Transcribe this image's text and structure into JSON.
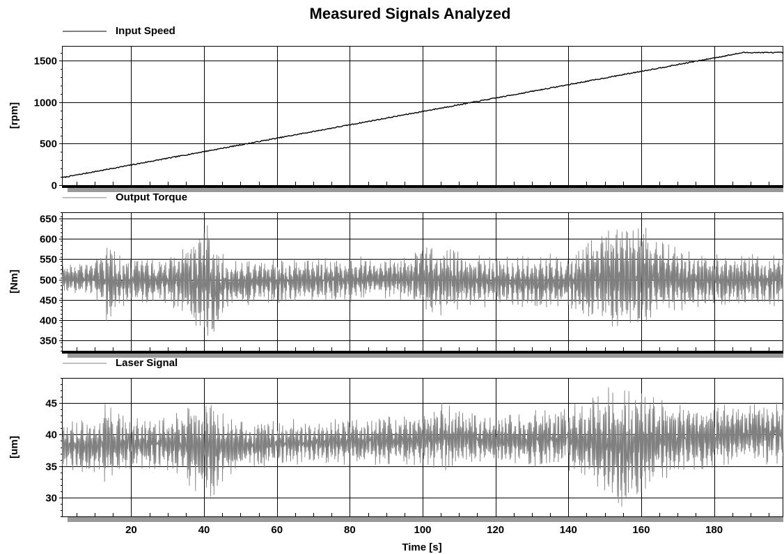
{
  "colors": {
    "background": "#ffffff",
    "grid": "#000000",
    "input_speed": "#000000",
    "output_torque": "#808080",
    "laser_signal": "#808080",
    "axis_bar_dark": "#000000",
    "axis_bar_light": "#999999"
  },
  "chart_data": {
    "type": "line",
    "title": "Measured Signals Analyzed",
    "xlabel": "Time [s]",
    "xlim": [
      1,
      199
    ],
    "x_ticks": [
      20,
      40,
      60,
      80,
      100,
      120,
      140,
      160,
      180
    ],
    "x_minor_step": 5,
    "grid": true,
    "panels": [
      {
        "id": "input-speed",
        "series_name": "Input Speed",
        "ylabel": "[rpm]",
        "ylim": [
          0,
          1680
        ],
        "y_ticks": [
          0,
          500,
          1000,
          1500
        ],
        "style": "ramp",
        "ramp": {
          "x_start": 1,
          "y_start": 90,
          "x_end": 188,
          "y_end": 1600,
          "y_plateau": 1600
        }
      },
      {
        "id": "output-torque",
        "series_name": "Output Torque",
        "ylabel": "[Nm]",
        "ylim": [
          325,
          665
        ],
        "y_ticks": [
          350,
          400,
          450,
          500,
          550,
          600,
          650
        ],
        "style": "oscillation",
        "envelope": {
          "x": [
            1,
            10,
            14,
            16,
            20,
            30,
            35,
            38,
            41,
            43,
            46,
            55,
            70,
            85,
            95,
            105,
            110,
            120,
            130,
            140,
            145,
            150,
            155,
            160,
            165,
            170,
            180,
            190,
            199
          ],
          "min": [
            465,
            460,
            370,
            420,
            440,
            440,
            400,
            345,
            345,
            350,
            420,
            440,
            440,
            445,
            445,
            400,
            420,
            430,
            425,
            420,
            400,
            370,
            350,
            365,
            400,
            410,
            425,
            430,
            430
          ],
          "max": [
            540,
            545,
            615,
            565,
            555,
            555,
            600,
            625,
            640,
            600,
            560,
            550,
            555,
            560,
            560,
            595,
            570,
            560,
            560,
            570,
            605,
            635,
            645,
            640,
            610,
            585,
            570,
            565,
            565
          ]
        }
      },
      {
        "id": "laser-signal",
        "series_name": "Laser Signal",
        "ylabel": "[um]",
        "ylim": [
          27,
          49
        ],
        "y_ticks": [
          30,
          35,
          40,
          45
        ],
        "style": "oscillation",
        "envelope": {
          "x": [
            1,
            10,
            14,
            16,
            20,
            30,
            35,
            38,
            41,
            43,
            46,
            55,
            70,
            85,
            95,
            105,
            110,
            120,
            130,
            140,
            145,
            150,
            155,
            160,
            165,
            170,
            180,
            190,
            199
          ],
          "min": [
            34,
            34,
            30.5,
            33,
            34,
            34,
            32,
            30,
            29.5,
            30,
            33,
            34.5,
            35,
            35,
            35,
            34,
            35,
            35,
            34.5,
            34,
            32,
            29.5,
            28,
            30,
            32.5,
            33,
            34.5,
            35,
            35
          ],
          "max": [
            42,
            42.5,
            47,
            44,
            43,
            43,
            45,
            46.5,
            46.5,
            45.5,
            43,
            42.5,
            42.5,
            43,
            43,
            45.5,
            44,
            43,
            44,
            45,
            46,
            47.5,
            48,
            47.5,
            46,
            45.5,
            45,
            45.5,
            45.5
          ]
        }
      }
    ]
  }
}
